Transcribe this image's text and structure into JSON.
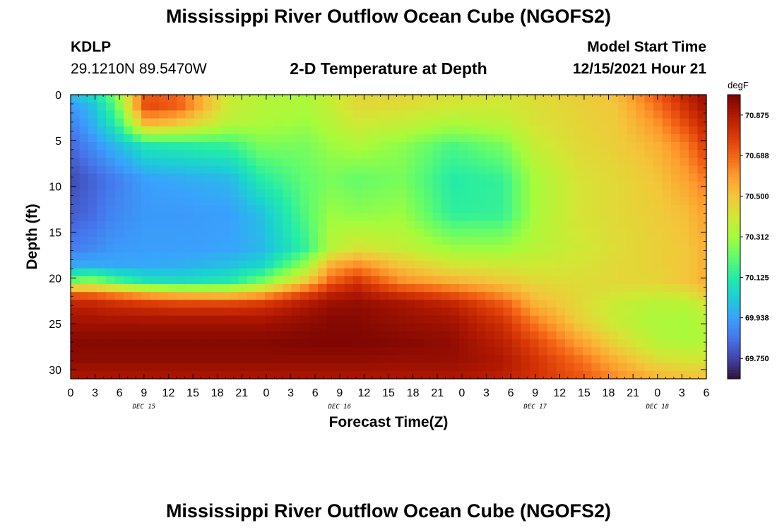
{
  "header": {
    "title": "Mississippi River Outflow Ocean Cube (NGOFS2)",
    "station_id": "KDLP",
    "station_coords": "29.1210N  89.5470W",
    "subtitle": "2-D Temperature at Depth",
    "run_label": "Model Start Time",
    "run_value": "12/15/2021 Hour 21"
  },
  "footer": {
    "title": "Mississippi River Outflow Ocean Cube (NGOFS2)"
  },
  "chart_data": {
    "type": "heatmap",
    "title": "2-D Temperature at Depth",
    "xlabel": "Forecast Time(Z)",
    "ylabel": "Depth (ft)",
    "x_tick_labels": [
      "0",
      "3",
      "6",
      "9",
      "12",
      "15",
      "18",
      "21",
      "0",
      "3",
      "6",
      "9",
      "12",
      "15",
      "18",
      "21",
      "0",
      "3",
      "6",
      "9",
      "12",
      "15",
      "18",
      "21",
      "0",
      "3",
      "6"
    ],
    "x_day_labels": [
      {
        "label": "DEC 15",
        "hour": 9
      },
      {
        "label": "DEC 16",
        "hour": 33
      },
      {
        "label": "DEC 17",
        "hour": 57
      },
      {
        "label": "DEC 18",
        "hour": 72
      }
    ],
    "x_hour_range": [
      0,
      78
    ],
    "y_ticks": [
      0,
      5,
      10,
      15,
      20,
      25,
      30
    ],
    "ylim": [
      0,
      31
    ],
    "y_inverted": true,
    "colorbar": {
      "unit": "degF",
      "ticks": [
        "70.875",
        "70.688",
        "70.500",
        "70.312",
        "70.125",
        "69.938",
        "69.750"
      ],
      "range": [
        69.656,
        70.969
      ],
      "colors": [
        "#30123b",
        "#4145ab",
        "#4675ed",
        "#39a2fc",
        "#1bcfd4",
        "#24eca6",
        "#61fc6c",
        "#a4fc3b",
        "#d1e834",
        "#f3c63a",
        "#fe9b2d",
        "#f36315",
        "#d93806",
        "#b11901",
        "#7a0402"
      ]
    },
    "rows_t": [
      0.0,
      0.04,
      0.1,
      0.18,
      0.3,
      0.42,
      0.54,
      0.6,
      0.66,
      0.7,
      0.74,
      0.8,
      0.87,
      0.94,
      1.0
    ],
    "cols_t": [
      0.0,
      0.03,
      0.07,
      0.12,
      0.17,
      0.25,
      0.3,
      0.37,
      0.41,
      0.45,
      0.52,
      0.6,
      0.68,
      0.73,
      0.8,
      0.86,
      0.92,
      0.97,
      1.0
    ],
    "values": [
      [
        70.0,
        70.05,
        70.25,
        70.72,
        70.68,
        70.38,
        70.35,
        70.32,
        70.38,
        70.45,
        70.46,
        70.43,
        70.42,
        70.45,
        70.48,
        70.52,
        70.7,
        70.85,
        70.92
      ],
      [
        69.92,
        69.98,
        70.2,
        70.75,
        70.7,
        70.38,
        70.35,
        70.33,
        70.38,
        70.45,
        70.44,
        70.4,
        70.4,
        70.43,
        70.47,
        70.5,
        70.66,
        70.82,
        70.9
      ],
      [
        69.87,
        69.95,
        70.12,
        70.55,
        70.5,
        70.35,
        70.33,
        70.3,
        70.35,
        70.4,
        70.38,
        70.33,
        70.36,
        70.42,
        70.46,
        70.49,
        70.6,
        70.75,
        70.85
      ],
      [
        69.82,
        69.88,
        69.98,
        70.1,
        70.12,
        70.15,
        70.25,
        70.25,
        70.3,
        70.33,
        70.28,
        70.18,
        70.25,
        70.38,
        70.45,
        70.48,
        70.54,
        70.65,
        70.78
      ],
      [
        69.76,
        69.8,
        69.86,
        69.93,
        69.95,
        69.98,
        70.12,
        70.22,
        70.25,
        70.22,
        70.25,
        70.12,
        70.15,
        70.32,
        70.42,
        70.45,
        70.5,
        70.58,
        70.65
      ],
      [
        69.8,
        69.82,
        69.88,
        69.92,
        69.92,
        69.93,
        70.0,
        70.2,
        70.3,
        70.28,
        70.3,
        70.14,
        70.15,
        70.32,
        70.42,
        70.45,
        70.48,
        70.52,
        70.58
      ],
      [
        69.86,
        69.88,
        69.92,
        69.93,
        69.93,
        69.94,
        69.98,
        70.15,
        70.35,
        70.42,
        70.38,
        70.3,
        70.3,
        70.35,
        70.4,
        70.44,
        70.47,
        70.5,
        70.55
      ],
      [
        69.95,
        69.96,
        69.95,
        69.95,
        69.96,
        70.0,
        70.05,
        70.3,
        70.55,
        70.62,
        70.5,
        70.42,
        70.4,
        70.4,
        70.42,
        70.45,
        70.47,
        70.5,
        70.55
      ],
      [
        70.25,
        70.3,
        70.2,
        70.1,
        70.08,
        70.12,
        70.25,
        70.5,
        70.7,
        70.8,
        70.62,
        70.55,
        70.5,
        70.45,
        70.44,
        70.45,
        70.46,
        70.5,
        70.55
      ],
      [
        70.7,
        70.68,
        70.62,
        70.55,
        70.5,
        70.48,
        70.55,
        70.75,
        70.85,
        70.88,
        70.8,
        70.72,
        70.6,
        70.5,
        70.45,
        70.42,
        70.4,
        70.42,
        70.5
      ],
      [
        70.85,
        70.85,
        70.82,
        70.8,
        70.78,
        70.78,
        70.8,
        70.88,
        70.92,
        70.93,
        70.9,
        70.85,
        70.72,
        70.55,
        70.45,
        70.38,
        70.35,
        70.35,
        70.4
      ],
      [
        70.9,
        70.9,
        70.9,
        70.9,
        70.9,
        70.9,
        70.9,
        70.93,
        70.95,
        70.95,
        70.92,
        70.9,
        70.8,
        70.65,
        70.48,
        70.38,
        70.33,
        70.32,
        70.35
      ],
      [
        70.95,
        70.95,
        70.95,
        70.95,
        70.95,
        70.95,
        70.95,
        70.96,
        70.96,
        70.96,
        70.95,
        70.93,
        70.85,
        70.75,
        70.58,
        70.45,
        70.35,
        70.33,
        70.35
      ],
      [
        70.93,
        70.93,
        70.93,
        70.93,
        70.93,
        70.93,
        70.93,
        70.93,
        70.93,
        70.93,
        70.92,
        70.92,
        70.88,
        70.8,
        70.68,
        70.55,
        70.45,
        70.42,
        70.42
      ],
      [
        70.88,
        70.88,
        70.88,
        70.88,
        70.88,
        70.88,
        70.88,
        70.88,
        70.88,
        70.88,
        70.88,
        70.88,
        70.85,
        70.8,
        70.72,
        70.62,
        70.55,
        70.52,
        70.52
      ]
    ]
  }
}
